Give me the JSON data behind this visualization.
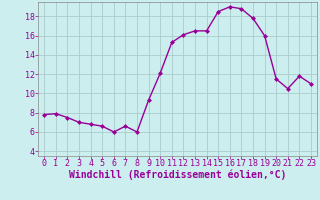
{
  "x": [
    0,
    1,
    2,
    3,
    4,
    5,
    6,
    7,
    8,
    9,
    10,
    11,
    12,
    13,
    14,
    15,
    16,
    17,
    18,
    19,
    20,
    21,
    22,
    23
  ],
  "y": [
    7.8,
    7.9,
    7.5,
    7.0,
    6.8,
    6.6,
    6.0,
    6.6,
    6.0,
    9.3,
    12.1,
    15.3,
    16.1,
    16.5,
    16.5,
    18.5,
    19.0,
    18.8,
    17.8,
    16.0,
    11.5,
    10.5,
    11.8,
    11.0
  ],
  "line_color": "#990099",
  "marker": "D",
  "marker_size": 2.0,
  "bg_color": "#cceeee",
  "grid_color": "#aacccc",
  "xlabel": "Windchill (Refroidissement éolien,°C)",
  "xlabel_color": "#990099",
  "tick_color": "#990099",
  "spine_color": "#888888",
  "xlim": [
    -0.5,
    23.5
  ],
  "ylim": [
    3.5,
    19.5
  ],
  "yticks": [
    4,
    6,
    8,
    10,
    12,
    14,
    16,
    18
  ],
  "xticks": [
    0,
    1,
    2,
    3,
    4,
    5,
    6,
    7,
    8,
    9,
    10,
    11,
    12,
    13,
    14,
    15,
    16,
    17,
    18,
    19,
    20,
    21,
    22,
    23
  ],
  "tick_fontsize": 6.0,
  "xlabel_fontsize": 7.0,
  "line_width": 1.0
}
